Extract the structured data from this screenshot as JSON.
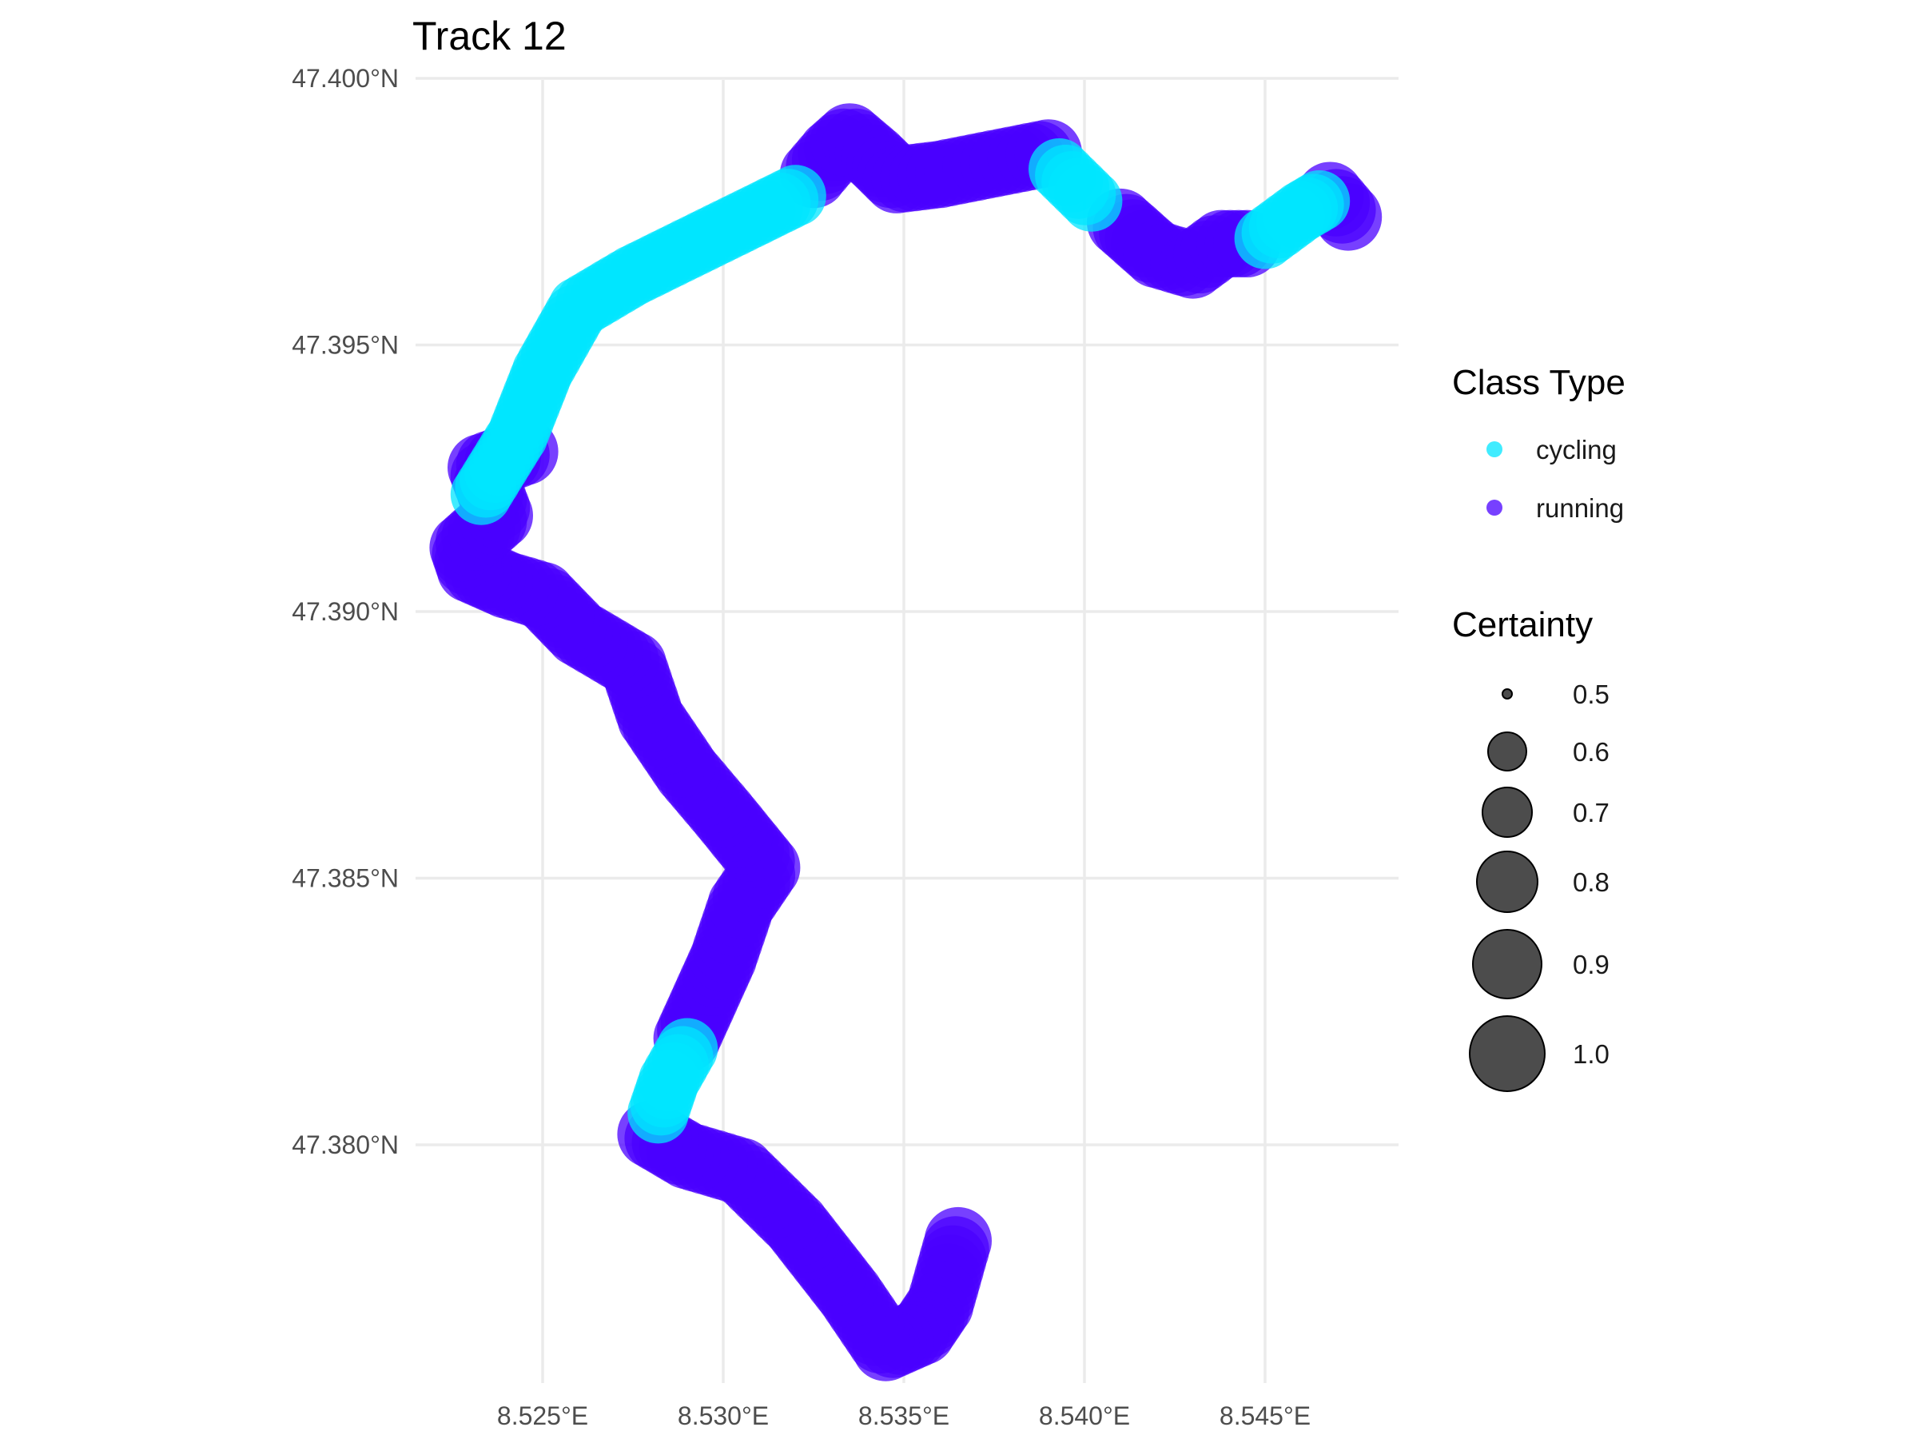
{
  "chart_data": {
    "type": "scatter",
    "title": "Track 12",
    "xlabel": "",
    "ylabel": "",
    "x_ticks": [
      "8.525°E",
      "8.530°E",
      "8.535°E",
      "8.540°E",
      "8.545°E"
    ],
    "x_tick_values": [
      8.525,
      8.53,
      8.535,
      8.54,
      8.545
    ],
    "y_ticks": [
      "47.380°N",
      "47.385°N",
      "47.390°N",
      "47.395°N",
      "47.400°N"
    ],
    "y_tick_values": [
      47.38,
      47.385,
      47.39,
      47.395,
      47.4
    ],
    "xlim": [
      8.5215,
      8.549
    ],
    "ylim": [
      47.3758,
      47.4
    ],
    "grid": true,
    "legend_position": "right",
    "color_legend": {
      "title": "Class Type",
      "entries": [
        {
          "label": "cycling",
          "color": "#00E5FF"
        },
        {
          "label": "running",
          "color": "#4A00FF"
        }
      ]
    },
    "size_legend": {
      "title": "Certainty",
      "entries": [
        "0.5",
        "0.6",
        "0.7",
        "0.8",
        "0.9",
        "1.0"
      ],
      "values": [
        0.5,
        0.6,
        0.7,
        0.8,
        0.9,
        1.0
      ]
    },
    "series": [
      {
        "name": "running",
        "color": "#4A00FF",
        "segments": [
          [
            [
              8.5365,
              47.3782
            ],
            [
              8.536,
              47.377
            ],
            [
              8.5355,
              47.3765
            ],
            [
              8.5345,
              47.3762
            ],
            [
              8.5335,
              47.3772
            ],
            [
              8.532,
              47.3785
            ],
            [
              8.5305,
              47.3795
            ],
            [
              8.529,
              47.3798
            ],
            [
              8.528,
              47.3802
            ]
          ],
          [
            [
              8.529,
              47.382
            ],
            [
              8.53,
              47.3835
            ],
            [
              8.5305,
              47.3845
            ],
            [
              8.5312,
              47.3852
            ],
            [
              8.53,
              47.3862
            ],
            [
              8.529,
              47.387
            ],
            [
              8.528,
              47.388
            ],
            [
              8.5275,
              47.389
            ],
            [
              8.526,
              47.3896
            ],
            [
              8.525,
              47.3903
            ],
            [
              8.524,
              47.3905
            ],
            [
              8.523,
              47.3908
            ],
            [
              8.5228,
              47.3912
            ],
            [
              8.5238,
              47.3918
            ],
            [
              8.5233,
              47.3927
            ],
            [
              8.5245,
              47.393
            ]
          ],
          [
            [
              8.5325,
              47.3982
            ],
            [
              8.533,
              47.3986
            ],
            [
              8.5335,
              47.3989
            ],
            [
              8.5342,
              47.3985
            ],
            [
              8.5348,
              47.3981
            ],
            [
              8.536,
              47.3982
            ],
            [
              8.5375,
              47.3984
            ],
            [
              8.539,
              47.3986
            ]
          ],
          [
            [
              8.541,
              47.3973
            ],
            [
              8.542,
              47.3967
            ],
            [
              8.543,
              47.3965
            ],
            [
              8.5438,
              47.3969
            ],
            [
              8.5445,
              47.3969
            ]
          ],
          [
            [
              8.5468,
              47.3978
            ],
            [
              8.5473,
              47.3974
            ]
          ]
        ],
        "certainty": 0.95
      },
      {
        "name": "cycling",
        "color": "#00E5FF",
        "segments": [
          [
            [
              8.5282,
              47.3806
            ],
            [
              8.5285,
              47.3812
            ],
            [
              8.529,
              47.3818
            ]
          ],
          [
            [
              8.5233,
              47.3922
            ],
            [
              8.5243,
              47.3933
            ],
            [
              8.525,
              47.3945
            ],
            [
              8.526,
              47.3957
            ],
            [
              8.5275,
              47.3963
            ],
            [
              8.529,
              47.3968
            ],
            [
              8.5305,
              47.3973
            ],
            [
              8.532,
              47.3978
            ]
          ],
          [
            [
              8.5393,
              47.3983
            ],
            [
              8.5402,
              47.3977
            ]
          ],
          [
            [
              8.545,
              47.397
            ],
            [
              8.546,
              47.3975
            ],
            [
              8.5465,
              47.3977
            ]
          ]
        ],
        "certainty": 0.9
      }
    ]
  }
}
